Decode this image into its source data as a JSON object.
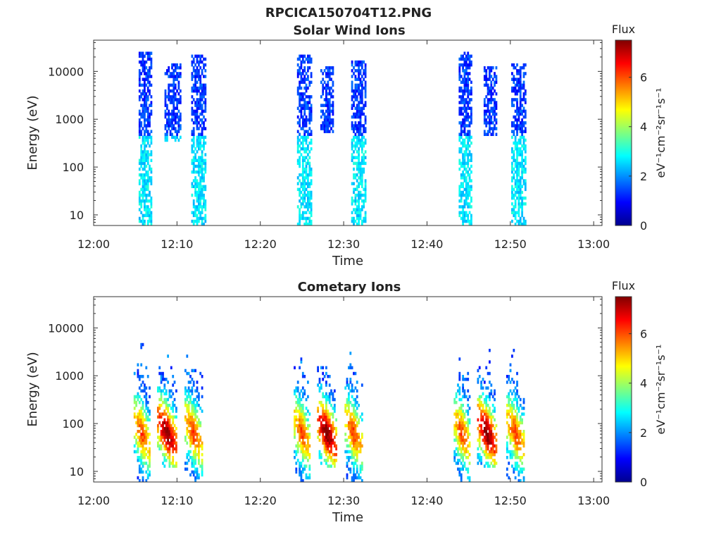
{
  "figure": {
    "title": "RPCICA150704T12.PNG"
  },
  "chart_data": [
    {
      "type": "heatmap",
      "title": "Solar Wind Ions",
      "xlabel": "Time",
      "ylabel": "Energy (eV)",
      "x_ticks": [
        "12:00",
        "12:10",
        "12:20",
        "12:30",
        "12:40",
        "12:50",
        "13:00"
      ],
      "x_range_minutes": [
        0,
        61
      ],
      "y_scale": "log",
      "y_ticks": [
        10,
        100,
        1000,
        10000
      ],
      "y_tick_labels": [
        "10",
        "100",
        "1000",
        "10000"
      ],
      "y_range": [
        6,
        45000
      ],
      "colorbar": {
        "title": "Flux",
        "label": "eV⁻¹cm⁻²sr⁻¹s⁻¹",
        "range": [
          0,
          7.5
        ],
        "ticks": [
          0,
          2,
          4,
          6
        ],
        "colormap": "jet"
      },
      "bursts": [
        {
          "center_min": 6.2,
          "width_min": 1.6,
          "e_low": 6,
          "e_high": 25000,
          "flux_peak": 2.4
        },
        {
          "center_min": 9.5,
          "width_min": 2.0,
          "e_low": 300,
          "e_high": 14000,
          "flux_peak": 1.8
        },
        {
          "center_min": 12.6,
          "width_min": 1.8,
          "e_low": 6,
          "e_high": 20000,
          "flux_peak": 2.6
        },
        {
          "center_min": 25.3,
          "width_min": 1.8,
          "e_low": 6,
          "e_high": 20000,
          "flux_peak": 2.5
        },
        {
          "center_min": 28.0,
          "width_min": 1.6,
          "e_low": 500,
          "e_high": 12000,
          "flux_peak": 1.8
        },
        {
          "center_min": 31.8,
          "width_min": 1.8,
          "e_low": 6,
          "e_high": 16000,
          "flux_peak": 2.6
        },
        {
          "center_min": 44.6,
          "width_min": 1.6,
          "e_low": 6,
          "e_high": 24000,
          "flux_peak": 2.4
        },
        {
          "center_min": 47.6,
          "width_min": 1.6,
          "e_low": 400,
          "e_high": 12000,
          "flux_peak": 1.8
        },
        {
          "center_min": 51.0,
          "width_min": 1.8,
          "e_low": 6,
          "e_high": 14000,
          "flux_peak": 2.5
        }
      ]
    },
    {
      "type": "heatmap",
      "title": "Cometary Ions",
      "xlabel": "Time",
      "ylabel": "Energy (eV)",
      "x_ticks": [
        "12:00",
        "12:10",
        "12:20",
        "12:30",
        "12:40",
        "12:50",
        "13:00"
      ],
      "x_range_minutes": [
        0,
        61
      ],
      "y_scale": "log",
      "y_ticks": [
        10,
        100,
        1000,
        10000
      ],
      "y_tick_labels": [
        "10",
        "100",
        "1000",
        "10000"
      ],
      "y_range": [
        6,
        45000
      ],
      "colorbar": {
        "title": "Flux",
        "label": "eV⁻¹cm⁻²sr⁻¹s⁻¹",
        "range": [
          0,
          7.5
        ],
        "ticks": [
          0,
          2,
          4,
          6
        ],
        "colormap": "jet"
      },
      "bursts": [
        {
          "center_min": 5.8,
          "width_min": 2.0,
          "e_low": 6,
          "e_high": 5000,
          "flux_peak": 4.8
        },
        {
          "center_min": 8.8,
          "width_min": 2.4,
          "e_low": 12,
          "e_high": 3000,
          "flux_peak": 6.3
        },
        {
          "center_min": 12.0,
          "width_min": 2.2,
          "e_low": 6,
          "e_high": 2500,
          "flux_peak": 4.8
        },
        {
          "center_min": 25.0,
          "width_min": 2.0,
          "e_low": 6,
          "e_high": 7000,
          "flux_peak": 4.8
        },
        {
          "center_min": 28.0,
          "width_min": 2.4,
          "e_low": 12,
          "e_high": 3000,
          "flux_peak": 6.3
        },
        {
          "center_min": 31.2,
          "width_min": 2.2,
          "e_low": 6,
          "e_high": 4000,
          "flux_peak": 4.8
        },
        {
          "center_min": 44.2,
          "width_min": 2.0,
          "e_low": 6,
          "e_high": 3500,
          "flux_peak": 4.8
        },
        {
          "center_min": 47.2,
          "width_min": 2.4,
          "e_low": 12,
          "e_high": 3500,
          "flux_peak": 6.3
        },
        {
          "center_min": 50.6,
          "width_min": 2.2,
          "e_low": 6,
          "e_high": 4500,
          "flux_peak": 4.8
        }
      ]
    }
  ]
}
